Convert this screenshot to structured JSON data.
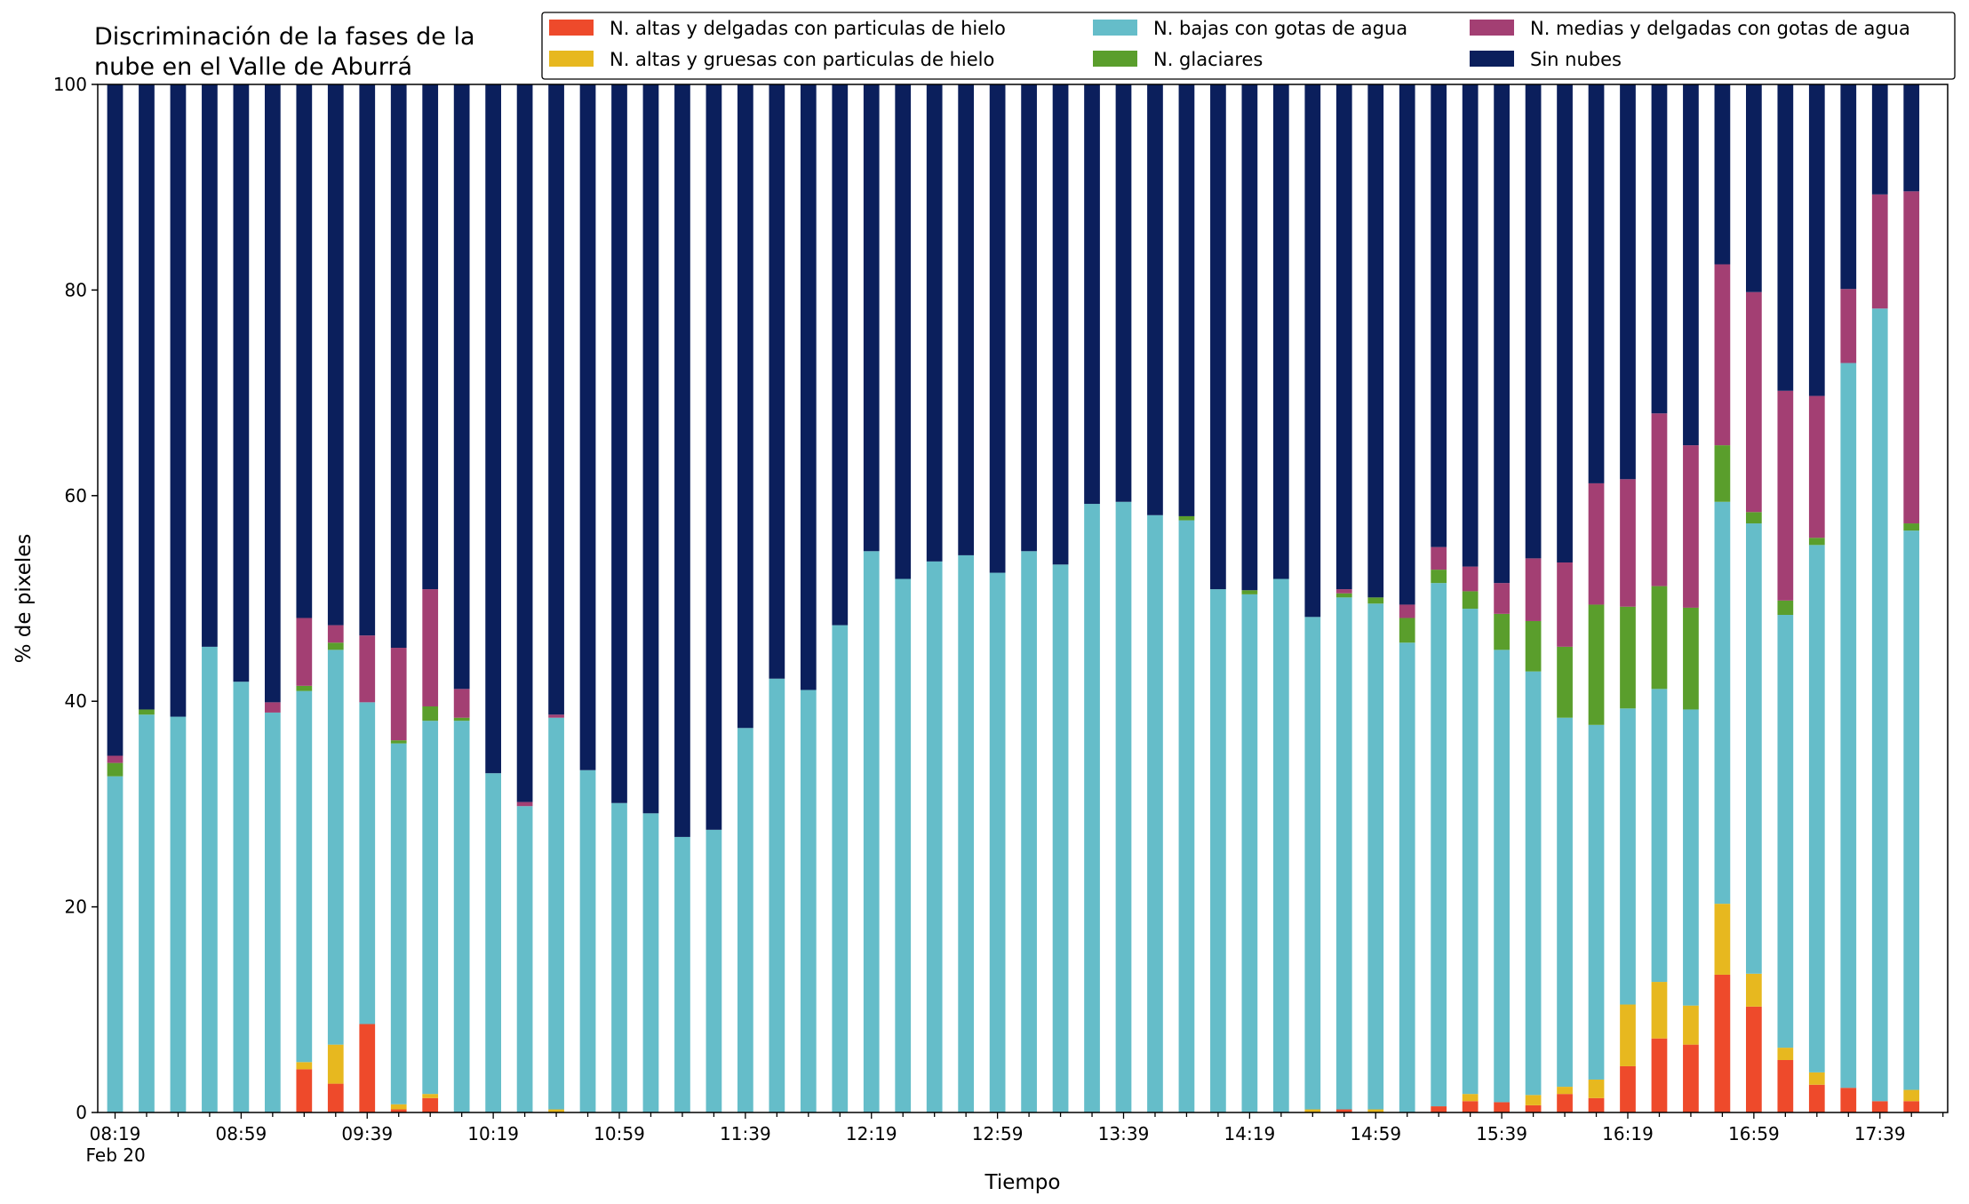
{
  "chart_data": {
    "type": "bar",
    "stacked": true,
    "title": [
      "Discriminación de la fases de la",
      "nube en el Valle de Aburrá"
    ],
    "xlabel": "Tiempo",
    "ylabel": "% de pixeles",
    "ylim": [
      0,
      100
    ],
    "yticks": [
      0,
      20,
      40,
      60,
      80,
      100
    ],
    "grid": false,
    "legend_position": "top-right",
    "x_tick_labels": [
      "08:19",
      "08:59",
      "09:39",
      "10:19",
      "10:59",
      "11:39",
      "12:19",
      "12:59",
      "13:39",
      "14:19",
      "14:59",
      "15:39",
      "16:19",
      "16:59",
      "17:39"
    ],
    "x_tick_sublabel": "Feb 20",
    "bar_count": 58,
    "series": [
      {
        "name": "N. altas y delgadas con particulas de hielo",
        "color": "#ee4a2b",
        "values": [
          0,
          0,
          0,
          0,
          0,
          0,
          4.2,
          2.8,
          8.6,
          0.3,
          1.4,
          0,
          0,
          0,
          0,
          0,
          0,
          0,
          0,
          0,
          0,
          0,
          0,
          0,
          0,
          0,
          0,
          0,
          0,
          0,
          0,
          0,
          0,
          0,
          0,
          0,
          0,
          0,
          0,
          0.3,
          0,
          0,
          0.6,
          1.1,
          1.0,
          0.7,
          1.8,
          1.4,
          4.5,
          7.2,
          6.6,
          13.4,
          10.3,
          5.1,
          2.7,
          2.4,
          1.1,
          1.1
        ]
      },
      {
        "name": "N. altas y gruesas con particulas de hielo",
        "color": "#e7b81f",
        "values": [
          0,
          0,
          0,
          0,
          0,
          0,
          0.7,
          3.8,
          0,
          0.5,
          0.4,
          0,
          0,
          0,
          0.3,
          0,
          0,
          0,
          0,
          0,
          0,
          0,
          0,
          0,
          0,
          0,
          0,
          0,
          0,
          0,
          0,
          0,
          0,
          0,
          0,
          0,
          0,
          0,
          0.3,
          0,
          0.3,
          0,
          0,
          0.7,
          0,
          1.0,
          0.7,
          1.8,
          6.0,
          5.5,
          3.8,
          6.9,
          3.2,
          1.2,
          1.2,
          0,
          0,
          1.1
        ]
      },
      {
        "name": "N. bajas con gotas de agua",
        "color": "#65bdc9",
        "values": [
          32.7,
          38.7,
          38.5,
          45.3,
          41.9,
          38.9,
          36.1,
          38.4,
          31.3,
          35.1,
          36.3,
          38.1,
          33.0,
          29.8,
          38.1,
          33.3,
          30.1,
          29.1,
          26.8,
          27.5,
          37.4,
          42.2,
          41.1,
          47.4,
          54.6,
          51.9,
          53.6,
          54.2,
          52.5,
          54.6,
          53.3,
          59.2,
          59.4,
          58.1,
          57.6,
          50.9,
          50.4,
          51.9,
          47.9,
          49.8,
          49.2,
          45.7,
          50.9,
          47.2,
          44.0,
          41.2,
          35.9,
          34.5,
          28.8,
          28.5,
          28.8,
          39.1,
          43.8,
          42.1,
          51.3,
          70.5,
          77.1,
          54.4
        ]
      },
      {
        "name": "N. glaciares",
        "color": "#5a9e2c",
        "values": [
          1.3,
          0.5,
          0,
          0,
          0,
          0,
          0.5,
          0.7,
          0,
          0.3,
          1.4,
          0.3,
          0,
          0,
          0,
          0,
          0,
          0,
          0,
          0,
          0,
          0,
          0,
          0,
          0,
          0,
          0,
          0,
          0,
          0,
          0,
          0,
          0,
          0,
          0.4,
          0,
          0.4,
          0,
          0,
          0.4,
          0.6,
          2.4,
          1.3,
          1.7,
          3.5,
          4.9,
          6.9,
          11.7,
          9.9,
          10.0,
          9.9,
          5.5,
          1.1,
          1.4,
          0.7,
          0,
          0,
          0.7
        ]
      },
      {
        "name": "N. medias y delgadas con gotas de agua",
        "color": "#a33f73",
        "values": [
          0.7,
          0,
          0,
          0,
          0,
          1.0,
          6.6,
          1.7,
          6.5,
          9.0,
          11.4,
          2.8,
          0,
          0.4,
          0.3,
          0,
          0,
          0,
          0,
          0,
          0,
          0,
          0,
          0,
          0,
          0,
          0,
          0,
          0,
          0,
          0,
          0,
          0,
          0,
          0,
          0,
          0,
          0,
          0,
          0.4,
          0,
          1.3,
          2.2,
          2.4,
          3.0,
          6.1,
          8.2,
          11.8,
          12.4,
          16.8,
          15.8,
          17.6,
          21.4,
          20.4,
          13.8,
          7.2,
          11.1,
          32.3
        ]
      },
      {
        "name": "Sin nubes",
        "color": "#0b1f5c",
        "values": [
          65.3,
          60.8,
          61.5,
          54.7,
          58.1,
          60.1,
          51.9,
          52.6,
          53.6,
          54.8,
          49.1,
          58.8,
          67.0,
          69.8,
          61.3,
          66.7,
          69.9,
          70.9,
          73.2,
          72.5,
          62.6,
          57.8,
          58.9,
          52.6,
          45.4,
          48.1,
          46.4,
          45.8,
          47.5,
          45.4,
          46.7,
          40.8,
          40.6,
          41.9,
          42.0,
          49.1,
          49.2,
          48.1,
          51.8,
          49.1,
          49.9,
          50.6,
          45.0,
          46.9,
          48.5,
          46.1,
          46.5,
          38.8,
          38.4,
          32.0,
          35.1,
          17.5,
          20.2,
          29.8,
          30.3,
          19.9,
          10.7,
          10.4
        ]
      }
    ]
  }
}
